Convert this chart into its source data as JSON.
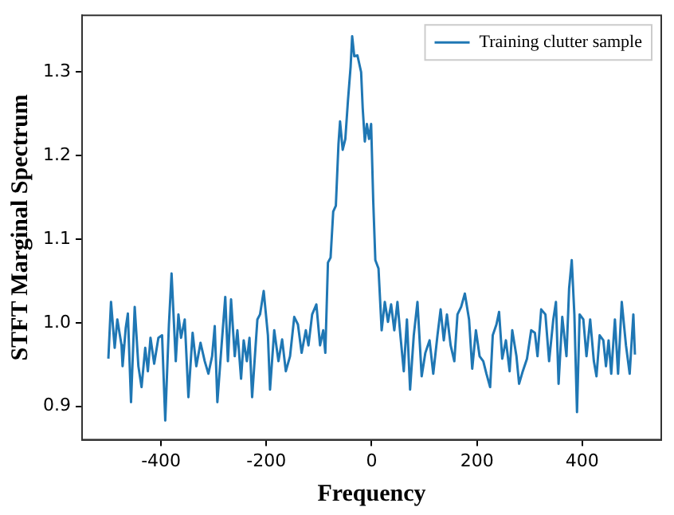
{
  "chart_data": {
    "type": "line",
    "xlabel": "Frequency",
    "ylabel": "STFT Marginal Spectrum",
    "xlim": [
      -550,
      550
    ],
    "ylim": [
      0.86,
      1.368
    ],
    "xticks": [
      -400,
      -200,
      0,
      200,
      400
    ],
    "yticks": [
      {
        "value": 0.9,
        "label": "0.9"
      },
      {
        "value": 1.0,
        "label": "1.0"
      },
      {
        "value": 1.1,
        "label": "1.1"
      },
      {
        "value": 1.2,
        "label": "1.2"
      },
      {
        "value": 1.3,
        "label": "1.3"
      }
    ],
    "grid": false,
    "legend": "top right",
    "marker": "none",
    "line_style": "solid",
    "series": [
      {
        "name": "Training clutter sample",
        "color": "#1f77b4",
        "x": [
          -500,
          -495,
          -488,
          -483,
          -475,
          -473,
          -467,
          -463,
          -457,
          -450,
          -443,
          -437,
          -430,
          -425,
          -420,
          -413,
          -405,
          -398,
          -392,
          -385,
          -380,
          -372,
          -367,
          -362,
          -355,
          -348,
          -340,
          -333,
          -325,
          -317,
          -310,
          -303,
          -298,
          -293,
          -285,
          -278,
          -273,
          -267,
          -260,
          -255,
          -248,
          -243,
          -237,
          -232,
          -227,
          -217,
          -212,
          -205,
          -197,
          -193,
          -185,
          -177,
          -170,
          -163,
          -155,
          -147,
          -140,
          -133,
          -125,
          -120,
          -113,
          -105,
          -98,
          -92,
          -88,
          -83,
          -78,
          -73,
          -68,
          -63,
          -60,
          -55,
          -50,
          -45,
          -40,
          -37,
          -33,
          -27,
          -20,
          -17,
          -13,
          -9,
          -5,
          -1,
          3,
          7,
          13,
          19,
          25,
          31,
          37,
          43,
          49,
          55,
          61,
          67,
          73,
          80,
          87,
          95,
          102,
          110,
          117,
          125,
          131,
          137,
          143,
          150,
          157,
          163,
          170,
          177,
          185,
          191,
          198,
          205,
          212,
          218,
          225,
          230,
          237,
          242,
          248,
          255,
          262,
          267,
          275,
          280,
          287,
          295,
          303,
          310,
          315,
          322,
          330,
          337,
          345,
          350,
          355,
          362,
          370,
          375,
          380,
          385,
          390,
          395,
          402,
          408,
          415,
          422,
          427,
          433,
          440,
          445,
          450,
          455,
          462,
          468,
          475,
          483,
          490,
          497,
          500
        ],
        "values": [
          0.957,
          1.025,
          0.97,
          1.004,
          0.973,
          0.948,
          0.994,
          1.011,
          0.905,
          1.019,
          0.948,
          0.923,
          0.97,
          0.942,
          0.982,
          0.951,
          0.982,
          0.985,
          0.883,
          0.998,
          1.059,
          0.954,
          1.01,
          0.982,
          1.004,
          0.911,
          0.988,
          0.948,
          0.976,
          0.954,
          0.939,
          0.96,
          0.996,
          0.905,
          0.973,
          1.031,
          0.954,
          1.028,
          0.96,
          0.991,
          0.933,
          0.979,
          0.954,
          0.982,
          0.911,
          1.004,
          1.01,
          1.038,
          0.985,
          0.92,
          0.991,
          0.954,
          0.98,
          0.942,
          0.96,
          1.007,
          0.998,
          0.964,
          0.991,
          0.973,
          1.01,
          1.022,
          0.973,
          0.991,
          0.964,
          1.072,
          1.078,
          1.133,
          1.14,
          1.214,
          1.241,
          1.207,
          1.22,
          1.266,
          1.306,
          1.343,
          1.319,
          1.32,
          1.3,
          1.257,
          1.217,
          1.238,
          1.22,
          1.238,
          1.146,
          1.075,
          1.065,
          0.991,
          1.025,
          1.001,
          1.022,
          0.991,
          1.025,
          0.982,
          0.942,
          1.004,
          0.92,
          0.985,
          1.025,
          0.936,
          0.964,
          0.979,
          0.939,
          0.985,
          1.016,
          0.979,
          1.01,
          0.973,
          0.954,
          1.01,
          1.019,
          1.035,
          1.004,
          0.945,
          0.991,
          0.96,
          0.954,
          0.939,
          0.923,
          0.985,
          0.998,
          1.013,
          0.957,
          0.979,
          0.942,
          0.991,
          0.96,
          0.927,
          0.942,
          0.957,
          0.991,
          0.988,
          0.96,
          1.016,
          1.01,
          0.954,
          1.004,
          1.025,
          0.927,
          1.007,
          0.96,
          1.041,
          1.075,
          1.01,
          0.893,
          1.01,
          1.004,
          0.96,
          1.004,
          0.954,
          0.936,
          0.985,
          0.979,
          0.948,
          0.979,
          0.939,
          1.004,
          0.939,
          1.025,
          0.973,
          0.939,
          1.01,
          0.962
        ]
      }
    ]
  }
}
